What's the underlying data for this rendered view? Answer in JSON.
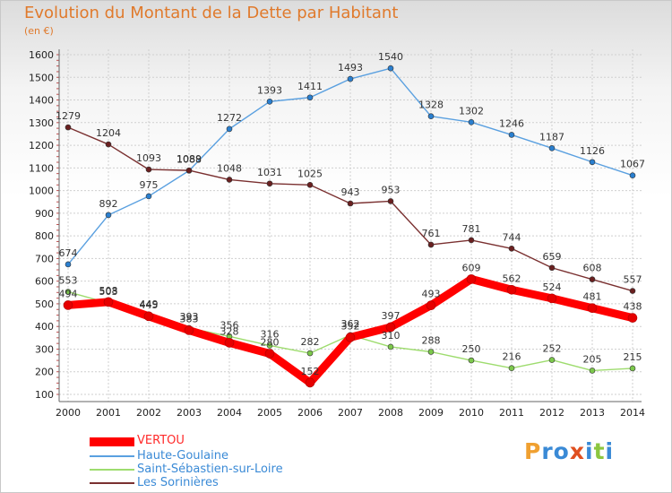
{
  "title": "Evolution du Montant de la Dette par Habitant",
  "unit": "(en €)",
  "logo": "Proxiti",
  "chart_data": {
    "type": "line",
    "title": "Evolution du Montant de la Dette par Habitant",
    "ylabel": "(en €)",
    "xlabel": "",
    "ylim": [
      100,
      1600
    ],
    "yticks": [
      100,
      200,
      300,
      400,
      500,
      600,
      700,
      800,
      900,
      1000,
      1100,
      1200,
      1300,
      1400,
      1500,
      1600
    ],
    "categories": [
      "2000",
      "2001",
      "2002",
      "2003",
      "2004",
      "2005",
      "2006",
      "2007",
      "2008",
      "2009",
      "2010",
      "2011",
      "2012",
      "2013",
      "2014"
    ],
    "grid": true,
    "legend_position": "bottom-left",
    "series": [
      {
        "name": "VERTOU",
        "color": "#ff0000",
        "marker": "#e60000",
        "values": [
          494,
          508,
          445,
          383,
          328,
          280,
          152,
          352,
          397,
          493,
          609,
          562,
          524,
          481,
          438
        ]
      },
      {
        "name": "Haute-Goulaine",
        "color": "#5aa0e0",
        "marker": "#2a7fcf",
        "values": [
          674,
          892,
          975,
          1088,
          1272,
          1393,
          1411,
          1493,
          1540,
          1328,
          1302,
          1246,
          1187,
          1126,
          1067
        ]
      },
      {
        "name": "Saint-Sébastien-sur-Loire",
        "color": "#9edc6e",
        "marker": "#7cc84c",
        "values": [
          553,
          503,
          449,
          393,
          356,
          316,
          282,
          362,
          310,
          288,
          250,
          216,
          252,
          205,
          215
        ]
      },
      {
        "name": "Les Sorinières",
        "color": "#7a3030",
        "marker": "#6a2020",
        "values": [
          1279,
          1204,
          1093,
          1089,
          1048,
          1031,
          1025,
          943,
          953,
          761,
          781,
          744,
          659,
          608,
          557
        ]
      }
    ]
  }
}
